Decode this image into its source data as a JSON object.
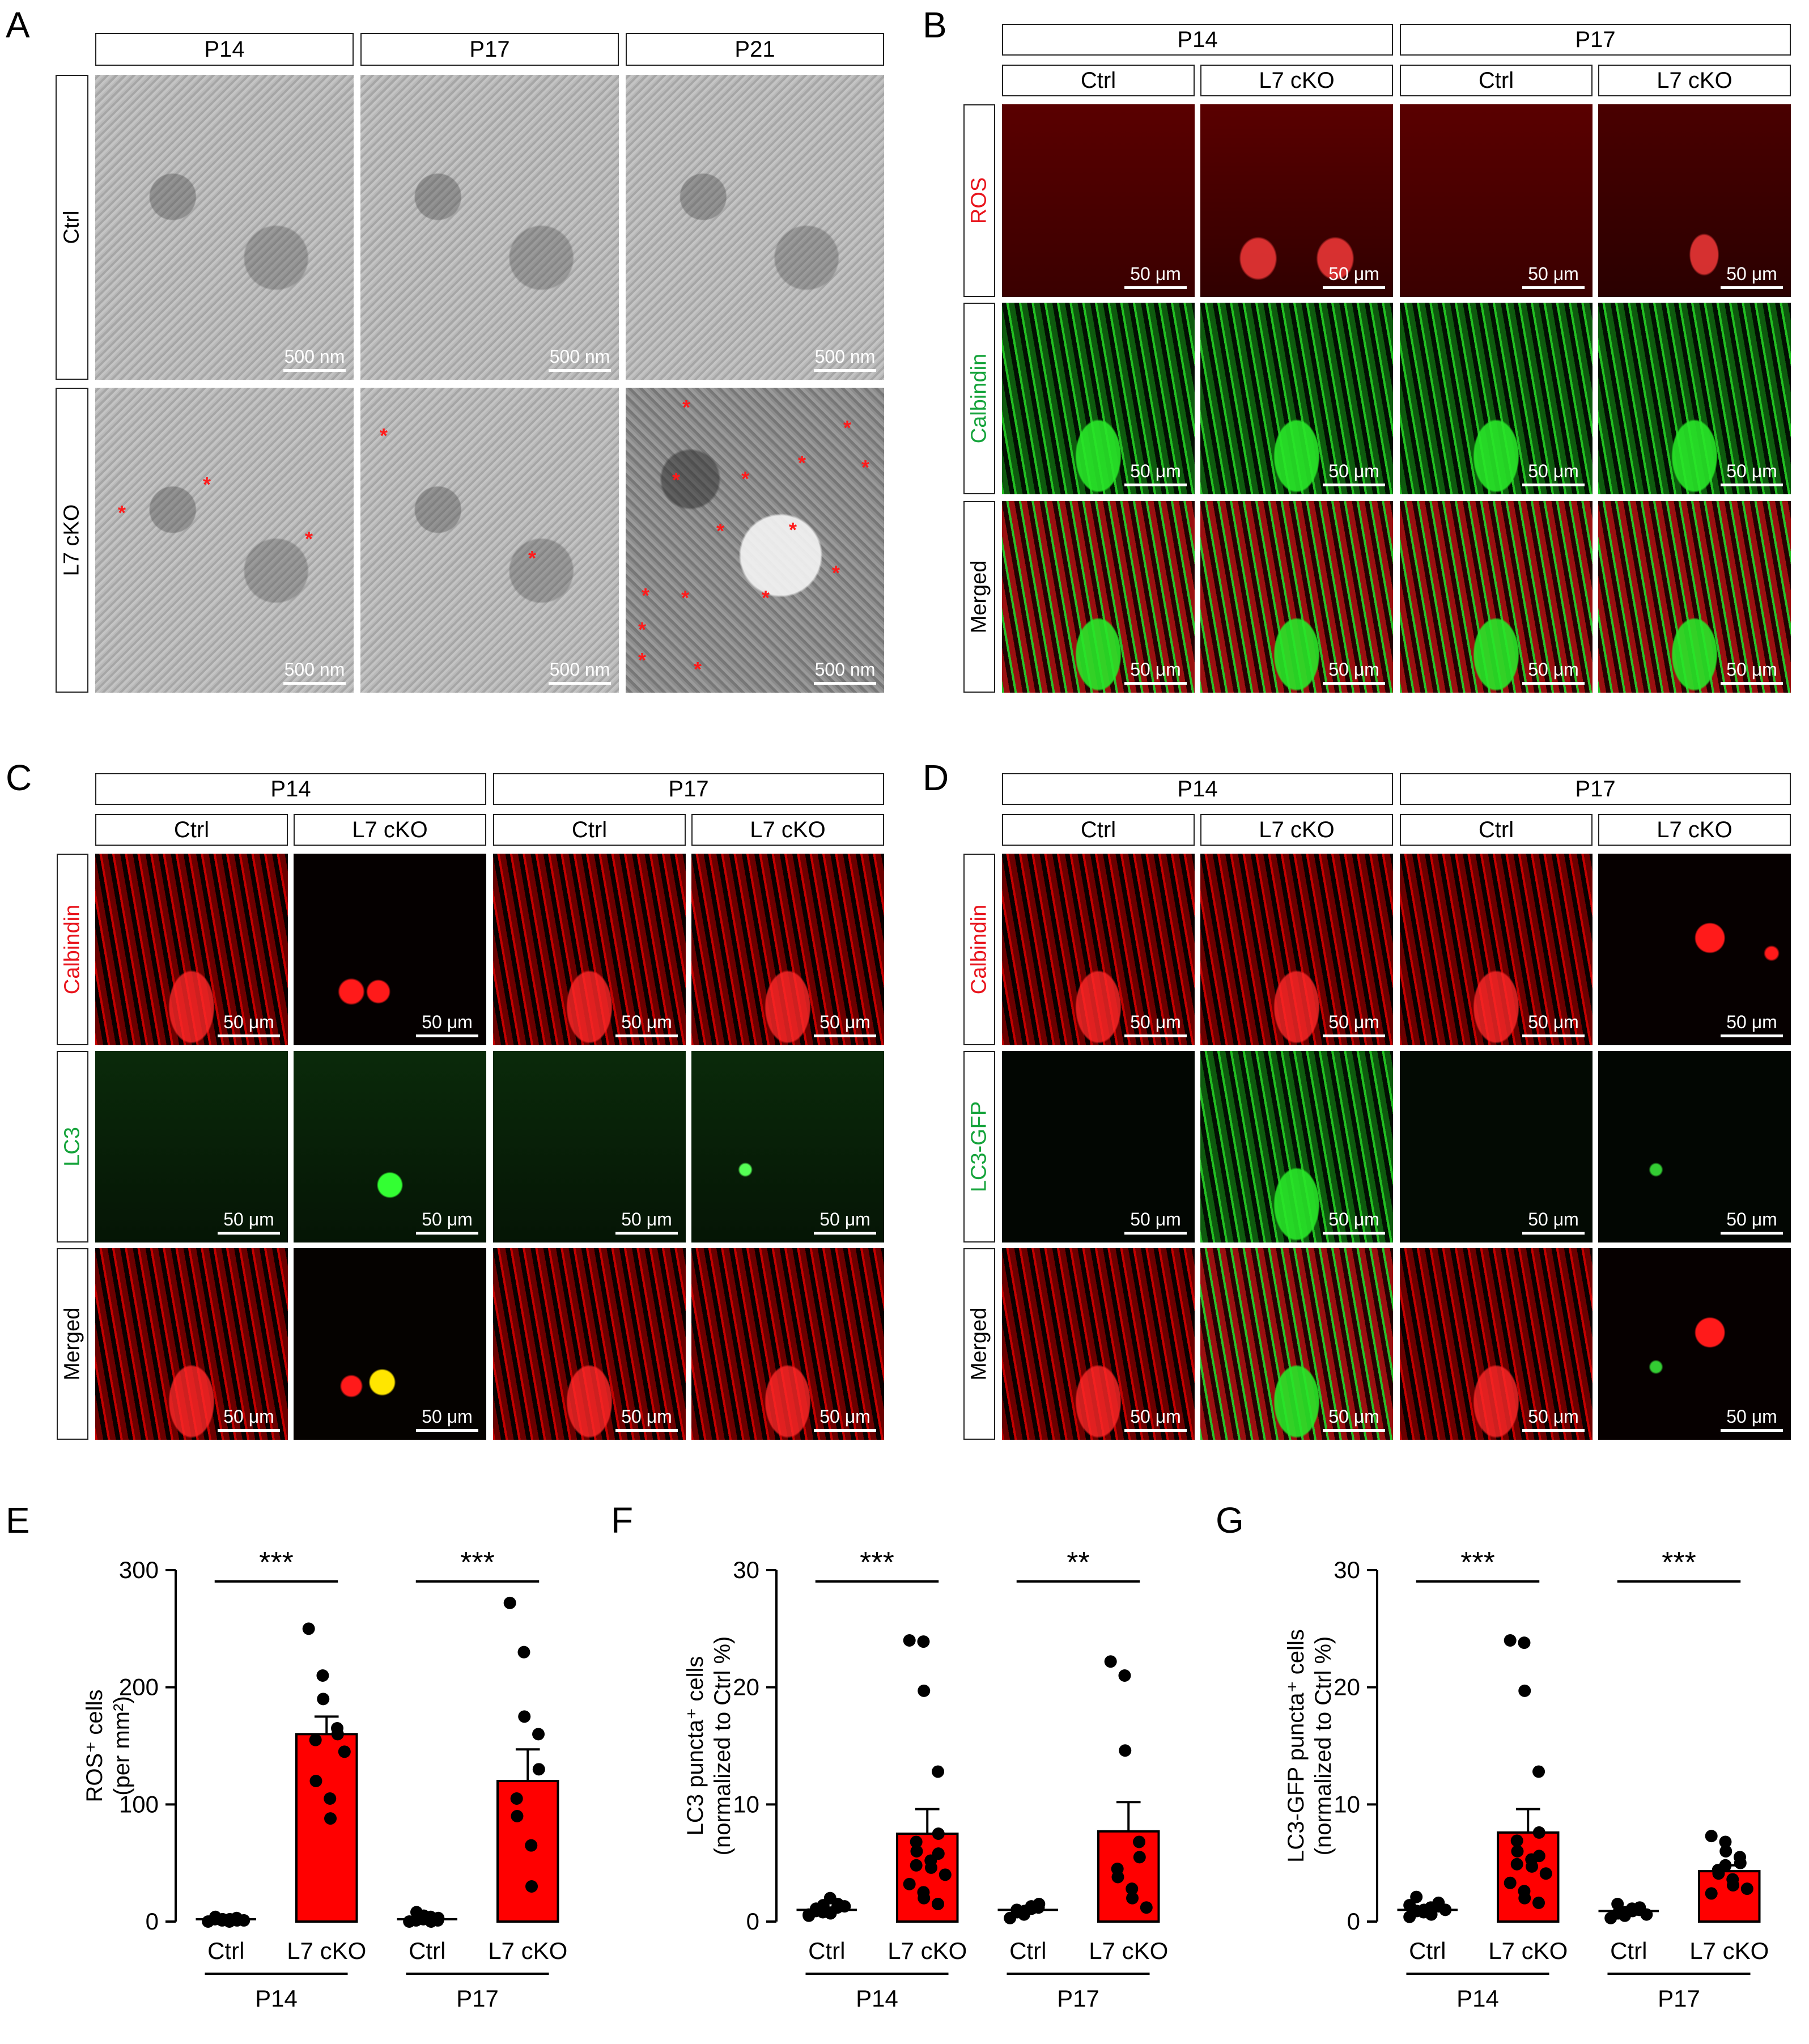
{
  "panel_labels": {
    "A": "A",
    "B": "B",
    "C": "C",
    "D": "D",
    "E": "E",
    "F": "F",
    "G": "G"
  },
  "panelA": {
    "columns": [
      "P14",
      "P17",
      "P21"
    ],
    "rows": [
      "Ctrl",
      "L7 cKO"
    ],
    "scalebar": "500 nm",
    "marker": "*"
  },
  "panelB": {
    "groups": [
      "P14",
      "P17"
    ],
    "columns": [
      "Ctrl",
      "L7 cKO",
      "Ctrl",
      "L7 cKO"
    ],
    "rows": [
      "ROS",
      "Calbindin",
      "Merged"
    ],
    "row_colors": {
      "ROS": "#e8131b",
      "Calbindin": "#14a33a",
      "Merged": "#000000"
    },
    "scalebar": "50 μm"
  },
  "panelC": {
    "groups": [
      "P14",
      "P17"
    ],
    "columns": [
      "Ctrl",
      "L7 cKO",
      "Ctrl",
      "L7 cKO"
    ],
    "rows": [
      "Calbindin",
      "LC3",
      "Merged"
    ],
    "row_colors": {
      "Calbindin": "#e8131b",
      "LC3": "#14a33a",
      "Merged": "#000000"
    },
    "scalebar": "50 μm"
  },
  "panelD": {
    "groups": [
      "P14",
      "P17"
    ],
    "columns": [
      "Ctrl",
      "L7 cKO",
      "Ctrl",
      "L7 cKO"
    ],
    "rows": [
      "Calbindin",
      "LC3-GFP",
      "Merged"
    ],
    "row_colors": {
      "Calbindin": "#e8131b",
      "LC3-GFP": "#14a33a",
      "Merged": "#000000"
    },
    "scalebar": "50 μm"
  },
  "chart_data": [
    {
      "type": "bar",
      "ylabel": "ROS⁺ cells (per mm²)",
      "ylim": [
        0,
        300
      ],
      "yticks": [
        0,
        100,
        200,
        300
      ],
      "categories": [
        "Ctrl",
        "L7 cKO",
        "Ctrl",
        "L7 cKO"
      ],
      "groups": [
        "P14",
        "P17"
      ],
      "values": [
        2,
        160,
        2,
        120
      ],
      "errors": [
        1,
        15,
        1,
        27
      ],
      "significance": [
        "***",
        "***"
      ],
      "bar_color": "#ff0000",
      "points": [
        [
          0,
          1,
          2,
          3,
          1,
          2,
          4,
          0,
          2,
          1
        ],
        [
          250,
          210,
          190,
          165,
          160,
          155,
          120,
          105,
          88,
          145
        ],
        [
          0,
          2,
          5,
          1,
          3,
          1,
          8,
          4,
          0
        ],
        [
          272,
          230,
          175,
          160,
          130,
          105,
          90,
          65,
          30
        ]
      ]
    },
    {
      "type": "bar",
      "ylabel": "LC3 puncta⁺ cells (normalized to Ctrl %)",
      "ylim": [
        0,
        30
      ],
      "yticks": [
        0,
        10,
        20,
        30
      ],
      "categories": [
        "Ctrl",
        "L7 cKO",
        "Ctrl",
        "L7 cKO"
      ],
      "groups": [
        "P14",
        "P17"
      ],
      "values": [
        1,
        7.5,
        1,
        7.7
      ],
      "errors": [
        0.2,
        2.1,
        0.2,
        2.5
      ],
      "significance": [
        "***",
        "**"
      ],
      "bar_color": "#ff0000",
      "points": [
        [
          0.5,
          0.8,
          1.0,
          1.2,
          1.5,
          0.9,
          1.1,
          2.0,
          0.7,
          1.3,
          0.6,
          1.0,
          1.4
        ],
        [
          24.0,
          23.9,
          19.7,
          12.8,
          7.5,
          6.8,
          6.0,
          5.2,
          4.6,
          4.0,
          3.2,
          2.5,
          2.0,
          1.5,
          5.8,
          4.8
        ],
        [
          0.3,
          0.6,
          0.9,
          1.2,
          1.5,
          1.0,
          0.8,
          1.3,
          1.1
        ],
        [
          22.2,
          21.0,
          14.6,
          6.8,
          5.5,
          4.5,
          3.8,
          2.8,
          2.0,
          1.2
        ]
      ]
    },
    {
      "type": "bar",
      "ylabel": "LC3-GFP puncta⁺ cells (normalized to Ctrl %)",
      "ylim": [
        0,
        30
      ],
      "yticks": [
        0,
        10,
        20,
        30
      ],
      "categories": [
        "Ctrl",
        "L7 cKO",
        "Ctrl",
        "L7 cKO"
      ],
      "groups": [
        "P14",
        "P17"
      ],
      "values": [
        1,
        7.6,
        0.9,
        4.3
      ],
      "errors": [
        0.2,
        2.0,
        0.15,
        0.5
      ],
      "significance": [
        "***",
        "***"
      ],
      "bar_color": "#ff0000",
      "points": [
        [
          0.4,
          0.8,
          1.0,
          1.3,
          1.6,
          2.1,
          0.9,
          1.2,
          0.6,
          1.0,
          1.4
        ],
        [
          24.0,
          23.8,
          19.7,
          12.8,
          7.6,
          6.9,
          6.0,
          5.3,
          4.7,
          4.1,
          3.3,
          2.6,
          2.0,
          1.6,
          5.6,
          4.9
        ],
        [
          0.3,
          0.5,
          0.8,
          1.0,
          1.2,
          1.5,
          0.7,
          1.1,
          0.9,
          0.6
        ],
        [
          7.3,
          6.8,
          6.0,
          5.5,
          5.0,
          4.4,
          4.1,
          3.6,
          3.1,
          2.8,
          2.4,
          4.8
        ]
      ]
    }
  ]
}
